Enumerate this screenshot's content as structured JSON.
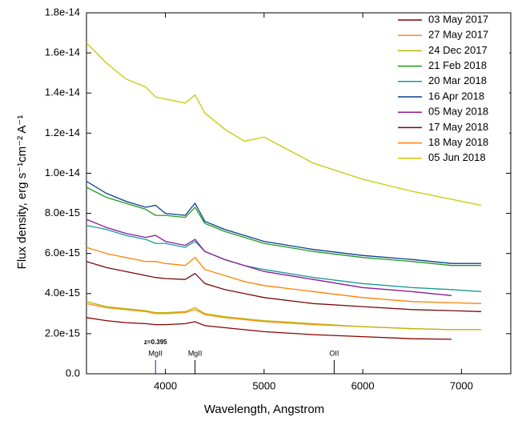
{
  "chart_data": {
    "type": "line",
    "xlabel": "Wavelength, Angstrom",
    "ylabel": "Flux density, erg s⁻¹cm⁻² A⁻¹",
    "xlim": [
      3200,
      7500
    ],
    "ylim": [
      0,
      1.8e-14
    ],
    "xticks": [
      4000,
      5000,
      6000,
      7000
    ],
    "yticks": [
      {
        "value": 0,
        "label": "0.0"
      },
      {
        "value": 2e-15,
        "label": "2.0e-15"
      },
      {
        "value": 4e-15,
        "label": "4.0e-15"
      },
      {
        "value": 6e-15,
        "label": "6.0e-15"
      },
      {
        "value": 8e-15,
        "label": "8.0e-15"
      },
      {
        "value": 1e-14,
        "label": "1.0e-14"
      },
      {
        "value": 1.2e-14,
        "label": "1.2e-14"
      },
      {
        "value": 1.4e-14,
        "label": "1.4e-14"
      },
      {
        "value": 1.6e-14,
        "label": "1.6e-14"
      },
      {
        "value": 1.8e-14,
        "label": "1.8e-14"
      }
    ],
    "legend": "upper right",
    "x": [
      3200,
      3400,
      3600,
      3800,
      3900,
      4000,
      4200,
      4300,
      4400,
      4600,
      4800,
      5000,
      5500,
      6000,
      6500,
      6900,
      7200
    ],
    "series": [
      {
        "name": "03 May 2017",
        "color": "#8b0000",
        "values": [
          2.8e-15,
          2.65e-15,
          2.55e-15,
          2.5e-15,
          2.45e-15,
          2.45e-15,
          2.5e-15,
          2.6e-15,
          2.4e-15,
          2.3e-15,
          2.2e-15,
          2.1e-15,
          1.95e-15,
          1.85e-15,
          1.75e-15,
          1.72e-15,
          null
        ]
      },
      {
        "name": "27 May 2017",
        "color": "#ff8c1a",
        "values": [
          3.5e-15,
          3.3e-15,
          3.2e-15,
          3.1e-15,
          3e-15,
          3e-15,
          3.05e-15,
          3.2e-15,
          2.95e-15,
          2.8e-15,
          2.7e-15,
          2.6e-15,
          2.45e-15,
          2.35e-15,
          2.25e-15,
          2.2e-15,
          2.2e-15
        ]
      },
      {
        "name": "24 Dec 2017",
        "color": "#b8b800",
        "values": [
          3.6e-15,
          3.35e-15,
          3.25e-15,
          3.15e-15,
          3.05e-15,
          3.05e-15,
          3.1e-15,
          3.3e-15,
          3e-15,
          2.85e-15,
          2.75e-15,
          2.65e-15,
          2.5e-15,
          2.35e-15,
          2.25e-15,
          2.2e-15,
          2.2e-15
        ]
      },
      {
        "name": "21 Feb 2018",
        "color": "#1e9a1e",
        "values": [
          9.3e-15,
          8.8e-15,
          8.5e-15,
          8.2e-15,
          7.9e-15,
          7.9e-15,
          7.8e-15,
          8.3e-15,
          7.5e-15,
          7.1e-15,
          6.8e-15,
          6.5e-15,
          6.1e-15,
          5.8e-15,
          5.6e-15,
          5.4e-15,
          5.4e-15
        ]
      },
      {
        "name": "20 Mar 2018",
        "color": "#1a9a9a",
        "values": [
          7.4e-15,
          7.2e-15,
          6.9e-15,
          6.7e-15,
          6.5e-15,
          6.5e-15,
          6.3e-15,
          6.6e-15,
          6.1e-15,
          5.7e-15,
          5.4e-15,
          5.2e-15,
          4.8e-15,
          4.5e-15,
          4.3e-15,
          4.2e-15,
          4.1e-15
        ]
      },
      {
        "name": "16 Apr 2018",
        "color": "#0a3d8f",
        "values": [
          9.6e-15,
          9e-15,
          8.6e-15,
          8.3e-15,
          8.4e-15,
          8e-15,
          7.9e-15,
          8.5e-15,
          7.6e-15,
          7.2e-15,
          6.9e-15,
          6.6e-15,
          6.2e-15,
          5.9e-15,
          5.7e-15,
          5.5e-15,
          5.5e-15
        ]
      },
      {
        "name": "05 May 2018",
        "color": "#8b1a9a",
        "values": [
          7.7e-15,
          7.3e-15,
          7e-15,
          6.8e-15,
          6.9e-15,
          6.6e-15,
          6.4e-15,
          6.7e-15,
          6.1e-15,
          5.7e-15,
          5.4e-15,
          5.1e-15,
          4.7e-15,
          4.3e-15,
          4.1e-15,
          3.9e-15,
          null
        ]
      },
      {
        "name": "17 May 2018",
        "color": "#7a0a0a",
        "values": [
          5.6e-15,
          5.3e-15,
          5.1e-15,
          4.9e-15,
          4.8e-15,
          4.75e-15,
          4.7e-15,
          5e-15,
          4.5e-15,
          4.2e-15,
          4e-15,
          3.8e-15,
          3.5e-15,
          3.35e-15,
          3.2e-15,
          3.15e-15,
          3.1e-15
        ]
      },
      {
        "name": "18 May 2018",
        "color": "#ff8000",
        "values": [
          6.3e-15,
          6e-15,
          5.8e-15,
          5.6e-15,
          5.6e-15,
          5.5e-15,
          5.4e-15,
          5.8e-15,
          5.2e-15,
          4.9e-15,
          4.6e-15,
          4.4e-15,
          4.1e-15,
          3.8e-15,
          3.6e-15,
          3.55e-15,
          3.5e-15
        ]
      },
      {
        "name": "05 Jun 2018",
        "color": "#c8c800",
        "values": [
          1.65e-14,
          1.55e-14,
          1.47e-14,
          1.43e-14,
          1.38e-14,
          1.37e-14,
          1.35e-14,
          1.39e-14,
          1.3e-14,
          1.22e-14,
          1.16e-14,
          1.18e-14,
          1.05e-14,
          9.7e-15,
          9.1e-15,
          8.7e-15,
          8.4e-15
        ]
      }
    ],
    "annotations": [
      {
        "text": "MgII",
        "x": 3900,
        "color": "#1a1ae6"
      },
      {
        "text": "z=0.395",
        "x": 3900,
        "color": "#1a1ae6"
      },
      {
        "text": "MgII",
        "x": 4300,
        "color": "#000000"
      },
      {
        "text": "OII",
        "x": 5710,
        "color": "#000000"
      }
    ]
  }
}
